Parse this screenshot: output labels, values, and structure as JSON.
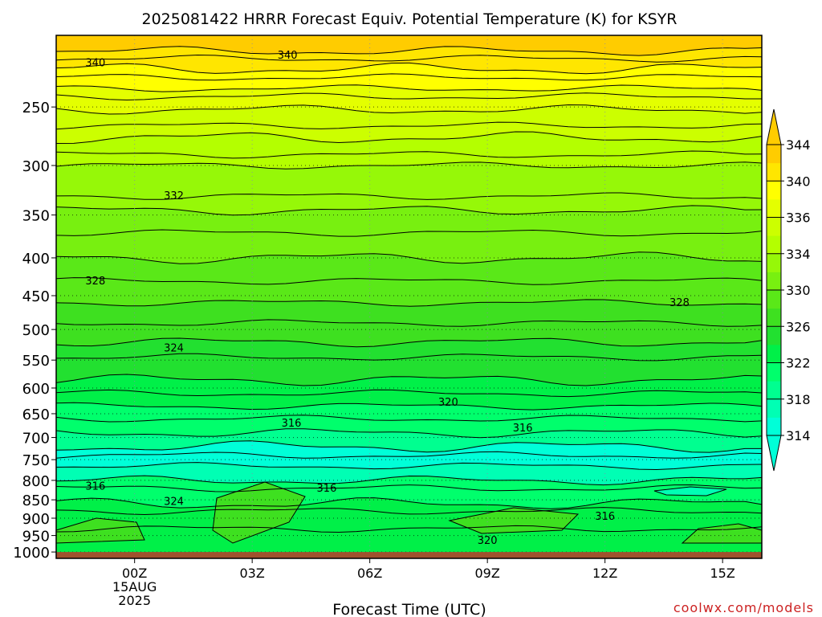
{
  "chart_data": {
    "type": "heatmap",
    "title": "2025081422 HRRR Forecast Equiv. Potential Temperature (K) for KSYR",
    "xlabel": "Forecast Time (UTC)",
    "ylabel": "",
    "x_ticks": [
      {
        "hour": -1.0,
        "label": "00Z",
        "sub": [
          "15AUG",
          "2025"
        ]
      },
      {
        "hour": 2.0,
        "label": "03Z",
        "sub": []
      },
      {
        "hour": 5.0,
        "label": "06Z",
        "sub": []
      },
      {
        "hour": 8.0,
        "label": "09Z",
        "sub": []
      },
      {
        "hour": 11.0,
        "label": "12Z",
        "sub": []
      },
      {
        "hour": 14.0,
        "label": "15Z",
        "sub": []
      }
    ],
    "xlim": [
      -3.0,
      15.0
    ],
    "y_scale": "log",
    "y_ticks": [
      250,
      300,
      350,
      400,
      450,
      500,
      550,
      600,
      650,
      700,
      750,
      800,
      850,
      900,
      950,
      1000
    ],
    "ylim": [
      1020,
      200
    ],
    "colorbar": {
      "levels": [
        314,
        316,
        318,
        320,
        322,
        324,
        326,
        328,
        330,
        332,
        334,
        336,
        338,
        340,
        342,
        344
      ],
      "tick_labels": [
        "344",
        "340",
        "336",
        "334",
        "330",
        "326",
        "322",
        "318",
        "314"
      ],
      "colors": [
        "#00ffd8",
        "#00ffb4",
        "#00ff90",
        "#00ff6c",
        "#00f048",
        "#22e030",
        "#3ee020",
        "#5ae818",
        "#78f010",
        "#96f808",
        "#b4ff00",
        "#ccff00",
        "#e4ff00",
        "#ffff00",
        "#ffe600",
        "#ffcc00"
      ]
    },
    "contour_labels": [
      {
        "text": "340",
        "hour": -2.0,
        "p": 218
      },
      {
        "text": "340",
        "hour": 2.9,
        "p": 213
      },
      {
        "text": "332",
        "hour": 0.0,
        "p": 330
      },
      {
        "text": "328",
        "hour": -2.0,
        "p": 430
      },
      {
        "text": "328",
        "hour": 12.9,
        "p": 460
      },
      {
        "text": "324",
        "hour": 0.0,
        "p": 530
      },
      {
        "text": "320",
        "hour": 7.0,
        "p": 628
      },
      {
        "text": "316",
        "hour": 3.0,
        "p": 670
      },
      {
        "text": "316",
        "hour": 8.9,
        "p": 680
      },
      {
        "text": "316",
        "hour": -2.0,
        "p": 815
      },
      {
        "text": "324",
        "hour": 0.0,
        "p": 855
      },
      {
        "text": "316",
        "hour": 3.9,
        "p": 820
      },
      {
        "text": "316",
        "hour": 11.0,
        "p": 896
      },
      {
        "text": "320",
        "hour": 8.0,
        "p": 965
      }
    ],
    "grid": true,
    "ground_color": "#a0522d",
    "legend": "colorbar-right"
  },
  "credit": "coolwx.com/models"
}
